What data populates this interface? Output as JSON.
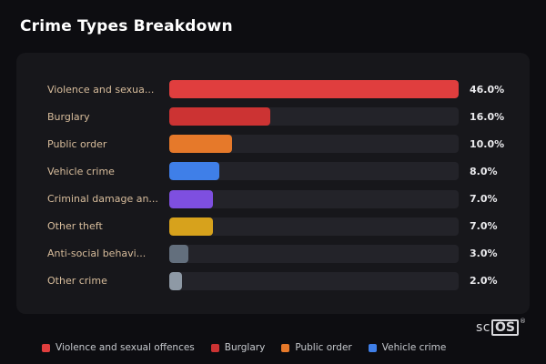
{
  "page": {
    "title": "Crime Types Breakdown"
  },
  "colors": {
    "background": "#0d0d11",
    "card": "#17171b",
    "bar_track": "#232329",
    "category_label": "#d8bd9c",
    "value_label": "#ebebee"
  },
  "chart_data": {
    "type": "bar",
    "orientation": "horizontal",
    "title": "Crime Types Breakdown",
    "categories": [
      "Violence and sexua...",
      "Burglary",
      "Public order",
      "Vehicle crime",
      "Criminal damage an...",
      "Other theft",
      "Anti-social behavi...",
      "Other crime"
    ],
    "values": [
      46.0,
      16.0,
      10.0,
      8.0,
      7.0,
      7.0,
      3.0,
      2.0
    ],
    "value_labels": [
      "46.0%",
      "16.0%",
      "10.0%",
      "8.0%",
      "7.0%",
      "7.0%",
      "3.0%",
      "2.0%"
    ],
    "bar_colors": [
      "#e03e3e",
      "#cc3333",
      "#e6792a",
      "#3f7fe8",
      "#7e4fe0",
      "#d7a21c",
      "#636f7d",
      "#8e99a5"
    ],
    "xlim": [
      0,
      46
    ],
    "grid": false,
    "legend_position": "bottom"
  },
  "legend": {
    "items": [
      {
        "label": "Violence and sexual offences",
        "color": "#e03e3e"
      },
      {
        "label": "Burglary",
        "color": "#cc3333"
      },
      {
        "label": "Public order",
        "color": "#e6792a"
      },
      {
        "label": "Vehicle crime",
        "color": "#3f7fe8"
      }
    ]
  },
  "branding": {
    "prefix": "sc",
    "boxed": "OS",
    "registered": "®"
  }
}
